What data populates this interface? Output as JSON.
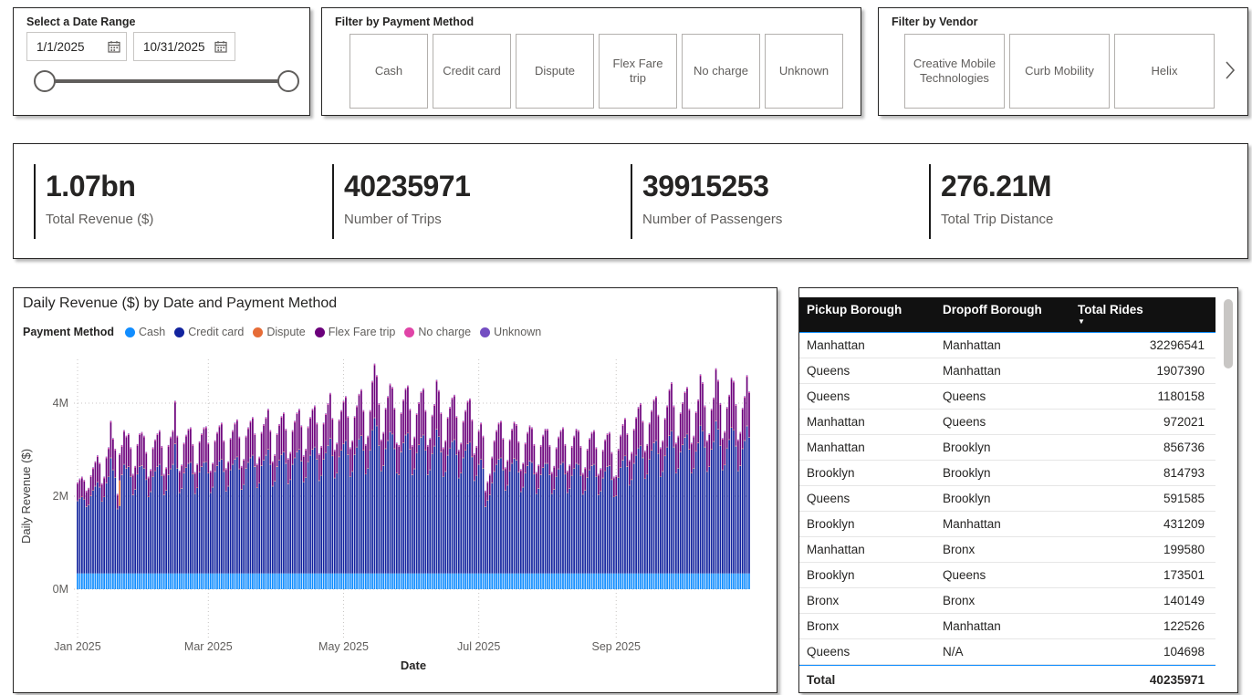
{
  "date_range": {
    "title": "Select a Date Range",
    "start": "1/1/2025",
    "end": "10/31/2025"
  },
  "payment_filter": {
    "title": "Filter by Payment Method",
    "options": [
      "Cash",
      "Credit card",
      "Dispute",
      "Flex Fare trip",
      "No charge",
      "Unknown"
    ]
  },
  "vendor_filter": {
    "title": "Filter by Vendor",
    "options": [
      "Creative Mobile Technologies",
      "Curb Mobility",
      "Helix"
    ],
    "next_icon": "chevron-right"
  },
  "kpis": [
    {
      "value": "1.07bn",
      "label": "Total Revenue ($)"
    },
    {
      "value": "40235971",
      "label": "Number of Trips"
    },
    {
      "value": "39915253",
      "label": "Number of Passengers"
    },
    {
      "value": "276.21M",
      "label": "Total Trip Distance"
    }
  ],
  "chart_data": {
    "type": "bar",
    "stacked": true,
    "title": "Daily Revenue ($) by Date and Payment Method",
    "legend_title": "Payment Method",
    "legend_position": "top",
    "xlabel": "Date",
    "ylabel": "Daily Revenue ($)",
    "x_start_date": "2025-01-01",
    "x_end_date": "2025-10-31",
    "ylim_millions": [
      0,
      5
    ],
    "grid": "dotted",
    "yticks": [
      {
        "label": "0M",
        "value": 0
      },
      {
        "label": "2M",
        "value": 2
      },
      {
        "label": "4M",
        "value": 4
      }
    ],
    "xticks": [
      {
        "label": "Jan 2025",
        "day": 0
      },
      {
        "label": "Mar 2025",
        "day": 59
      },
      {
        "label": "May 2025",
        "day": 120
      },
      {
        "label": "Jul 2025",
        "day": 181
      },
      {
        "label": "Sep 2025",
        "day": 243
      }
    ],
    "series": [
      {
        "name": "Cash",
        "color": "#118DFF"
      },
      {
        "name": "Credit card",
        "color": "#12239E"
      },
      {
        "name": "Dispute",
        "color": "#E66C37"
      },
      {
        "name": "Flex Fare trip",
        "color": "#6B007B"
      },
      {
        "name": "No charge",
        "color": "#E044A7"
      },
      {
        "name": "Unknown",
        "color": "#744EC2"
      }
    ],
    "daily_total_revenue_millions": [
      2.3,
      2.38,
      2.42,
      2.35,
      2.12,
      2.18,
      2.45,
      2.62,
      2.75,
      2.88,
      2.72,
      2.28,
      2.42,
      2.85,
      3.05,
      3.62,
      3.25,
      3.02,
      2.05,
      2.92,
      3.1,
      3.42,
      3.3,
      3.35,
      3.05,
      2.48,
      2.65,
      3.12,
      3.35,
      3.38,
      3.3,
      2.95,
      2.42,
      2.58,
      3.05,
      3.22,
      3.35,
      3.42,
      3.08,
      2.48,
      2.62,
      3.1,
      3.28,
      3.42,
      4.05,
      3.3,
      2.55,
      2.68,
      3.15,
      3.32,
      3.45,
      3.48,
      3.12,
      2.52,
      2.7,
      3.18,
      3.35,
      3.48,
      3.5,
      3.15,
      2.55,
      2.72,
      3.2,
      3.38,
      3.52,
      3.58,
      3.2,
      2.6,
      2.75,
      3.25,
      3.42,
      3.58,
      3.65,
      3.28,
      2.65,
      2.8,
      3.3,
      3.48,
      3.62,
      3.7,
      3.35,
      2.7,
      2.85,
      3.38,
      3.55,
      3.7,
      3.88,
      3.42,
      2.75,
      2.9,
      3.35,
      3.55,
      3.72,
      3.8,
      3.45,
      2.82,
      2.95,
      3.42,
      3.62,
      3.8,
      3.88,
      3.52,
      2.88,
      3.02,
      3.5,
      3.7,
      3.88,
      3.95,
      3.58,
      2.92,
      3.08,
      3.58,
      3.78,
      4.0,
      4.22,
      3.68,
      3.0,
      3.15,
      3.65,
      3.85,
      4.05,
      4.15,
      3.72,
      3.05,
      3.2,
      3.72,
      3.95,
      4.2,
      4.3,
      3.85,
      3.12,
      3.3,
      3.85,
      4.48,
      4.85,
      4.6,
      4.0,
      3.22,
      3.38,
      3.9,
      4.15,
      4.42,
      4.35,
      3.9,
      3.15,
      3.1,
      3.8,
      4.08,
      4.32,
      4.38,
      3.88,
      3.1,
      3.28,
      3.78,
      4.02,
      4.25,
      4.32,
      3.85,
      3.1,
      3.25,
      3.75,
      3.98,
      4.5,
      4.28,
      3.8,
      3.05,
      3.2,
      3.7,
      3.92,
      4.12,
      4.18,
      3.72,
      3.0,
      3.15,
      3.62,
      3.85,
      4.05,
      4.1,
      3.65,
      2.92,
      3.08,
      3.42,
      3.58,
      3.3,
      2.12,
      2.32,
      2.48,
      2.85,
      3.2,
      3.42,
      3.58,
      3.62,
      3.25,
      2.62,
      2.78,
      3.22,
      3.45,
      3.6,
      3.55,
      3.18,
      2.58,
      2.72,
      3.15,
      3.38,
      3.52,
      3.48,
      3.12,
      2.52,
      2.68,
      3.1,
      3.32,
      3.45,
      3.45,
      3.1,
      2.52,
      2.65,
      3.05,
      3.28,
      3.42,
      3.48,
      3.12,
      2.55,
      2.68,
      3.08,
      3.3,
      3.45,
      3.42,
      3.08,
      2.5,
      2.62,
      3.02,
      3.25,
      3.38,
      3.42,
      3.05,
      2.48,
      2.6,
      3.0,
      3.22,
      3.35,
      3.38,
      2.95,
      2.42,
      2.45,
      3.02,
      3.32,
      3.55,
      3.68,
      3.35,
      2.78,
      2.95,
      3.45,
      3.7,
      3.92,
      4.0,
      3.62,
      2.98,
      3.12,
      3.58,
      3.85,
      4.08,
      4.15,
      3.75,
      3.05,
      3.2,
      3.68,
      3.95,
      4.3,
      4.45,
      3.95,
      3.15,
      3.3,
      3.8,
      4.02,
      4.25,
      4.35,
      3.88,
      3.15,
      3.3,
      3.82,
      4.08,
      4.62,
      4.45,
      3.95,
      3.2,
      3.35,
      3.88,
      4.12,
      4.75,
      4.5,
      4.0,
      3.25,
      3.4,
      3.92,
      4.18,
      4.55,
      4.48,
      3.98,
      3.22,
      3.38,
      3.9,
      4.15,
      4.6,
      4.25
    ],
    "composition_rule": {
      "cash_base": 0.34,
      "dispute_base": 0.01,
      "no_charge_base": 0.022,
      "unknown_base": 0.012,
      "flex_coeff": 0.3,
      "flex_offset": 1.1
    },
    "special_days": [
      {
        "index": 19,
        "series": "Dispute",
        "value_millions": 0.55
      }
    ]
  },
  "table": {
    "columns": [
      "Pickup Borough",
      "Dropoff Borough",
      "Total Rides"
    ],
    "sort_column": "Total Rides",
    "sort_direction": "desc",
    "accent_color": "#118DFF",
    "rows": [
      {
        "pickup": "Manhattan",
        "dropoff": "Manhattan",
        "rides": "32296541"
      },
      {
        "pickup": "Queens",
        "dropoff": "Manhattan",
        "rides": "1907390"
      },
      {
        "pickup": "Queens",
        "dropoff": "Queens",
        "rides": "1180158"
      },
      {
        "pickup": "Manhattan",
        "dropoff": "Queens",
        "rides": "972021"
      },
      {
        "pickup": "Manhattan",
        "dropoff": "Brooklyn",
        "rides": "856736"
      },
      {
        "pickup": "Brooklyn",
        "dropoff": "Brooklyn",
        "rides": "814793"
      },
      {
        "pickup": "Queens",
        "dropoff": "Brooklyn",
        "rides": "591585"
      },
      {
        "pickup": "Brooklyn",
        "dropoff": "Manhattan",
        "rides": "431209"
      },
      {
        "pickup": "Manhattan",
        "dropoff": "Bronx",
        "rides": "199580"
      },
      {
        "pickup": "Brooklyn",
        "dropoff": "Queens",
        "rides": "173501"
      },
      {
        "pickup": "Bronx",
        "dropoff": "Bronx",
        "rides": "140149"
      },
      {
        "pickup": "Bronx",
        "dropoff": "Manhattan",
        "rides": "122526"
      },
      {
        "pickup": "Queens",
        "dropoff": "N/A",
        "rides": "104698"
      }
    ],
    "total_label": "Total",
    "total_value": "40235971"
  }
}
